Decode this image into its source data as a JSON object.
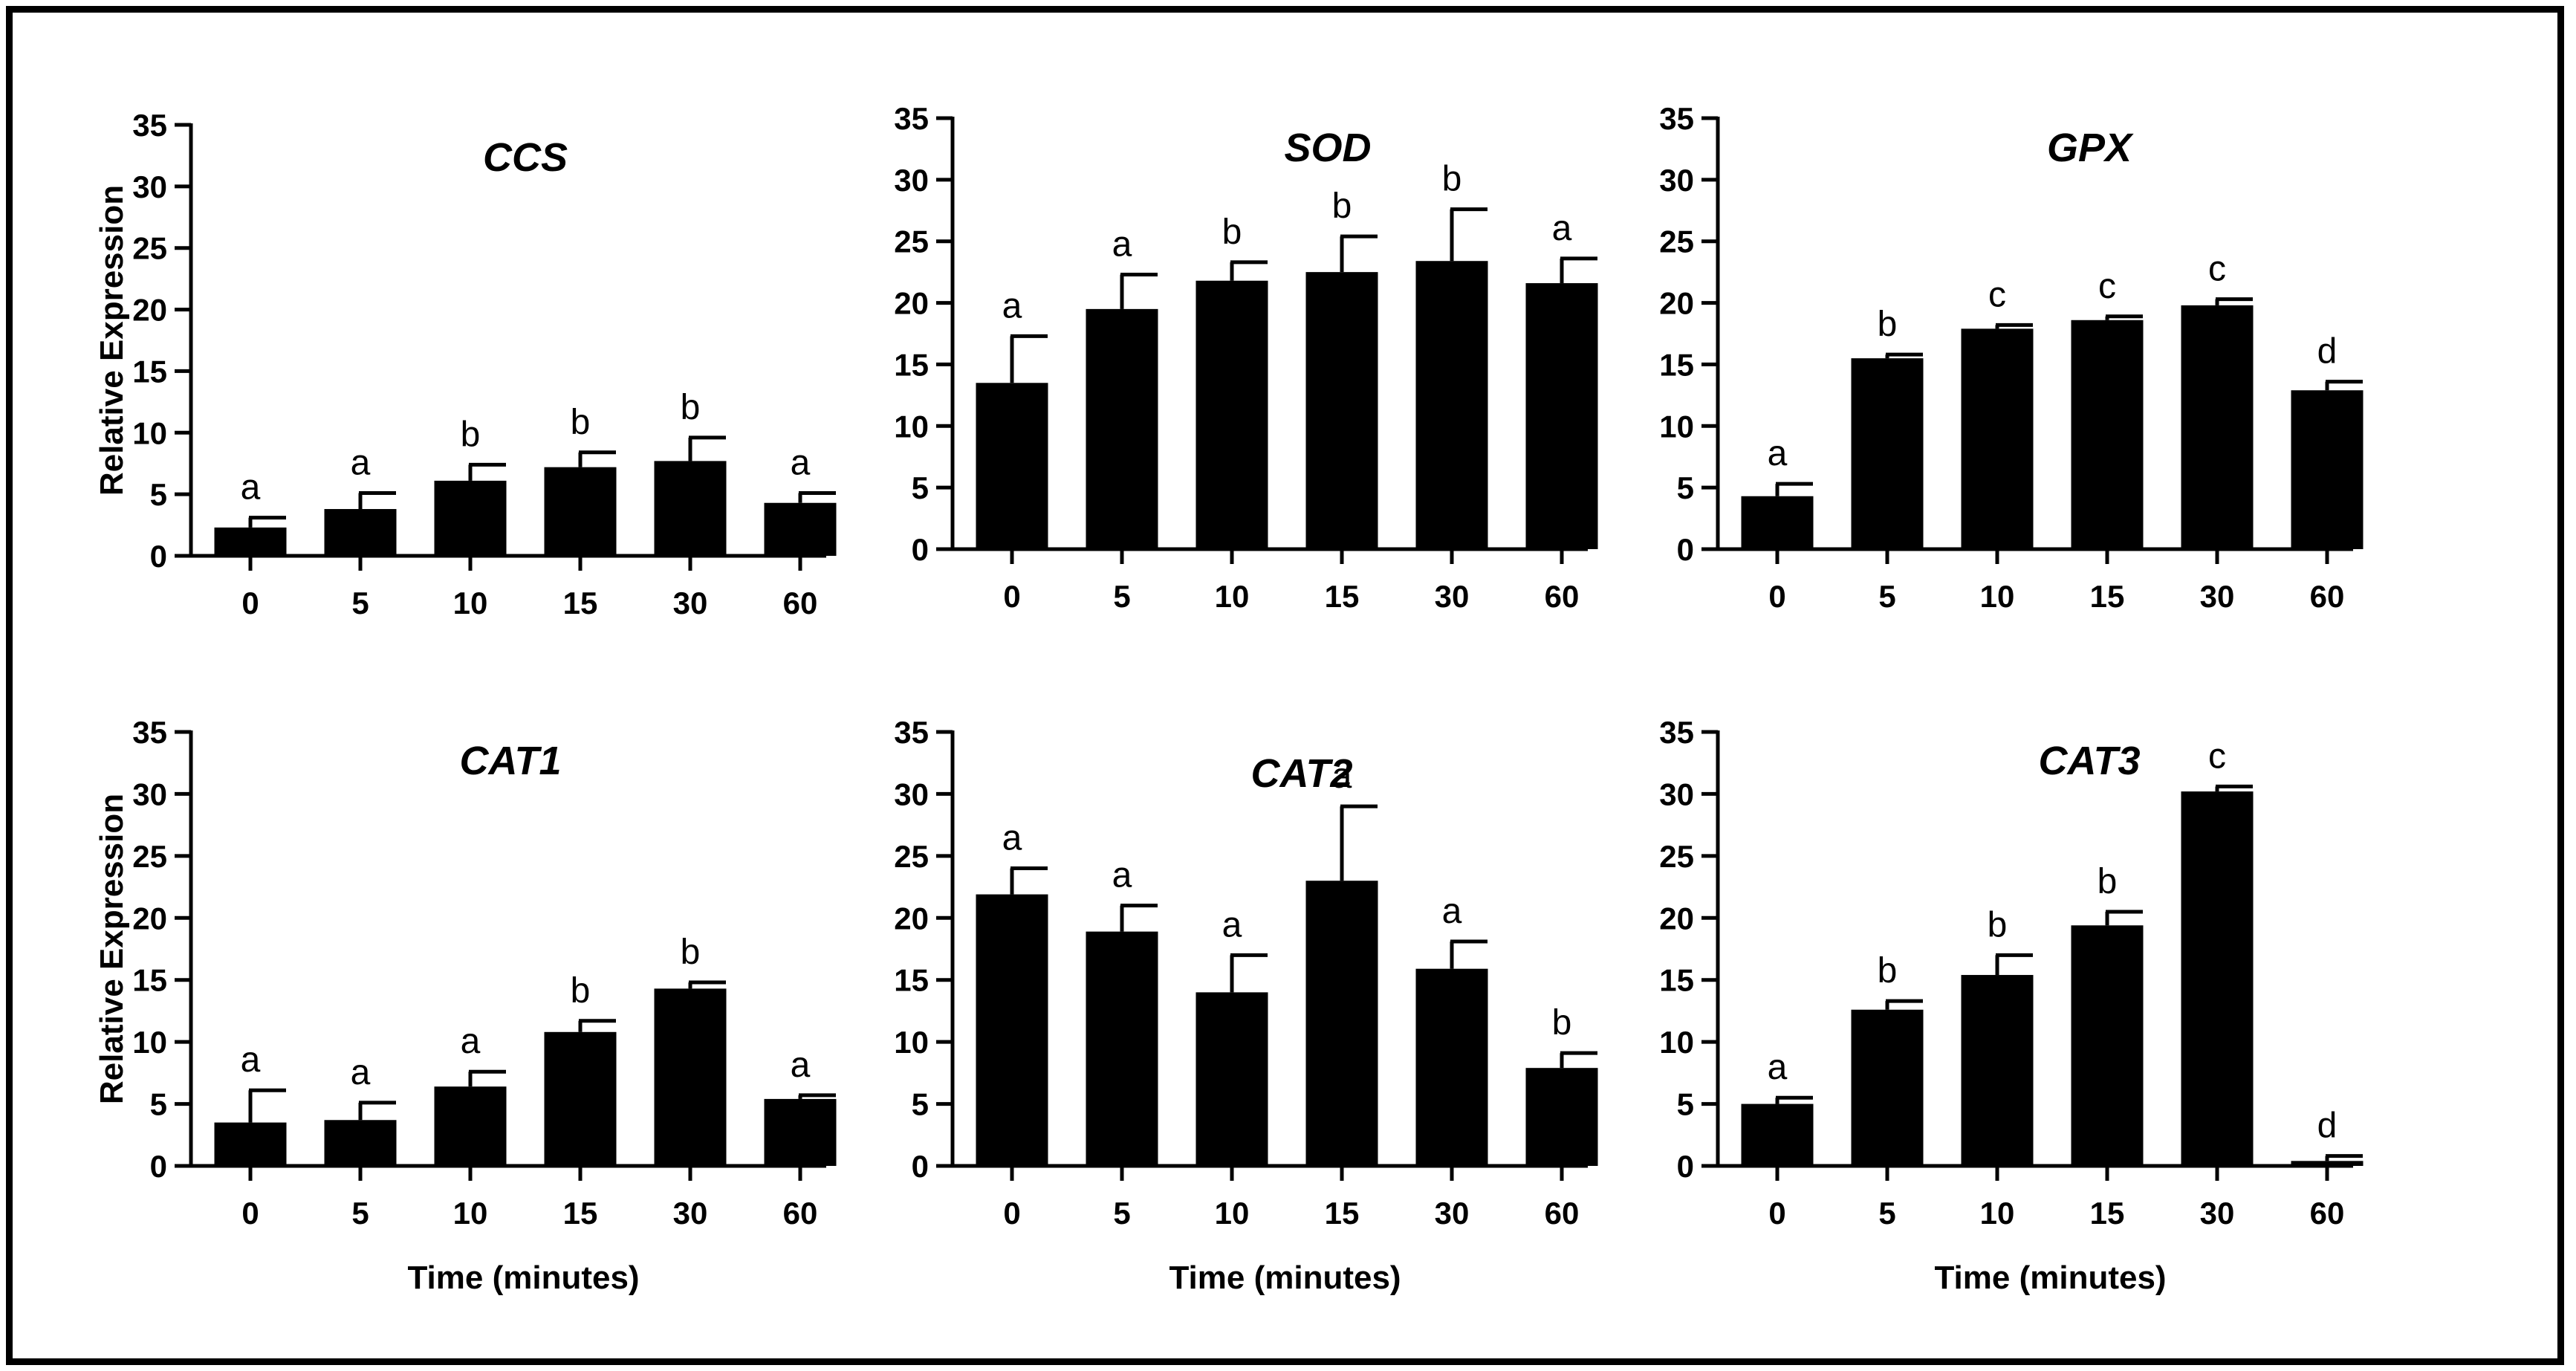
{
  "figure": {
    "background": "#ffffff",
    "bar_color": "#000000"
  },
  "chart_data": [
    {
      "type": "bar",
      "title": "CCS",
      "categories": [
        "0",
        "5",
        "10",
        "15",
        "30",
        "60"
      ],
      "values": [
        2.3,
        3.8,
        6.1,
        7.2,
        7.7,
        4.3
      ],
      "errors": [
        0.8,
        1.3,
        1.3,
        1.2,
        1.9,
        0.8
      ],
      "labels": [
        "a",
        "a",
        "b",
        "b",
        "b",
        "a"
      ],
      "ylabel": "Relative Expression",
      "xlabel": "",
      "ylim": [
        0,
        35
      ],
      "yticks": [
        "0",
        "5",
        "10",
        "15",
        "20",
        "25",
        "30",
        "35"
      ]
    },
    {
      "type": "bar",
      "title": "SOD",
      "categories": [
        "0",
        "5",
        "10",
        "15",
        "30",
        "60"
      ],
      "values": [
        13.5,
        19.5,
        21.8,
        22.5,
        23.4,
        21.6
      ],
      "errors": [
        3.8,
        2.8,
        1.5,
        2.9,
        4.2,
        2.0
      ],
      "labels": [
        "a",
        "a",
        "b",
        "b",
        "b",
        "a"
      ],
      "ylabel": "",
      "xlabel": "",
      "ylim": [
        0,
        35
      ],
      "yticks": [
        "0",
        "5",
        "10",
        "15",
        "20",
        "25",
        "30",
        "35"
      ]
    },
    {
      "type": "bar",
      "title": "GPX",
      "categories": [
        "0",
        "5",
        "10",
        "15",
        "30",
        "60"
      ],
      "values": [
        4.3,
        15.5,
        17.9,
        18.6,
        19.8,
        12.9
      ],
      "errors": [
        1.0,
        0.3,
        0.3,
        0.3,
        0.5,
        0.7
      ],
      "labels": [
        "a",
        "b",
        "c",
        "c",
        "c",
        "d"
      ],
      "ylabel": "",
      "xlabel": "",
      "ylim": [
        0,
        35
      ],
      "yticks": [
        "0",
        "5",
        "10",
        "15",
        "20",
        "25",
        "30",
        "35"
      ]
    },
    {
      "type": "bar",
      "title": "CAT1",
      "categories": [
        "0",
        "5",
        "10",
        "15",
        "30",
        "60"
      ],
      "values": [
        3.5,
        3.7,
        6.4,
        10.8,
        14.3,
        5.4
      ],
      "errors": [
        2.6,
        1.4,
        1.2,
        0.9,
        0.5,
        0.3
      ],
      "labels": [
        "a",
        "a",
        "a",
        "b",
        "b",
        "a"
      ],
      "ylabel": "Relative Expression",
      "xlabel": "Time (minutes)",
      "ylim": [
        0,
        35
      ],
      "yticks": [
        "0",
        "5",
        "10",
        "15",
        "20",
        "25",
        "30",
        "35"
      ]
    },
    {
      "type": "bar",
      "title": "CAT2",
      "categories": [
        "0",
        "5",
        "10",
        "15",
        "30",
        "60"
      ],
      "values": [
        21.9,
        18.9,
        14.0,
        23.0,
        15.9,
        7.9
      ],
      "errors": [
        2.1,
        2.1,
        3.0,
        6.0,
        2.2,
        1.2
      ],
      "labels": [
        "a",
        "a",
        "a",
        "a",
        "a",
        "b"
      ],
      "ylabel": "",
      "xlabel": "Time (minutes)",
      "ylim": [
        0,
        35
      ],
      "yticks": [
        "0",
        "5",
        "10",
        "15",
        "20",
        "25",
        "30",
        "35"
      ]
    },
    {
      "type": "bar",
      "title": "CAT3",
      "categories": [
        "0",
        "5",
        "10",
        "15",
        "30",
        "60"
      ],
      "values": [
        5.0,
        12.6,
        15.4,
        19.4,
        30.2,
        0.4
      ],
      "errors": [
        0.5,
        0.7,
        1.6,
        1.1,
        0.4,
        0.4
      ],
      "labels": [
        "a",
        "b",
        "b",
        "b",
        "c",
        "d"
      ],
      "ylabel": "",
      "xlabel": "Time (minutes)",
      "ylim": [
        0,
        35
      ],
      "yticks": [
        "0",
        "5",
        "10",
        "15",
        "20",
        "25",
        "30",
        "35"
      ]
    }
  ]
}
